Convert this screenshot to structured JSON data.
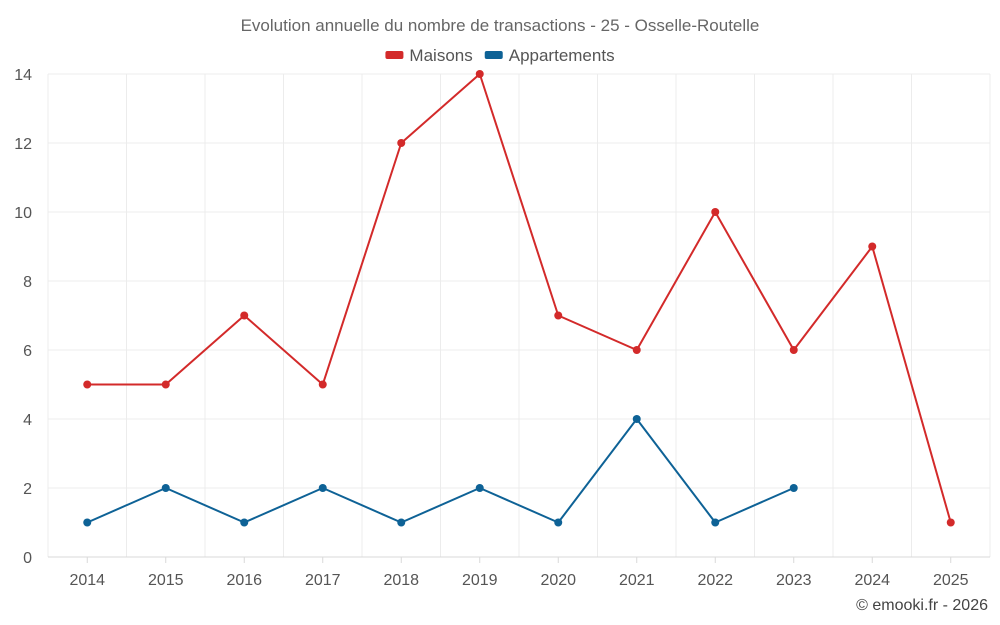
{
  "chart_data": {
    "type": "line",
    "title": "Evolution annuelle du nombre de transactions - 25 - Osselle-Routelle",
    "categories": [
      "2014",
      "2015",
      "2016",
      "2017",
      "2018",
      "2019",
      "2020",
      "2021",
      "2022",
      "2023",
      "2024",
      "2025"
    ],
    "series": [
      {
        "name": "Maisons",
        "color": "#d32a2a",
        "values": [
          5,
          5,
          7,
          5,
          12,
          14,
          7,
          6,
          10,
          6,
          9,
          1
        ]
      },
      {
        "name": "Appartements",
        "color": "#0e6296",
        "values": [
          1,
          2,
          1,
          2,
          1,
          2,
          1,
          4,
          1,
          2,
          null,
          null
        ]
      }
    ],
    "ylim": [
      0,
      14
    ],
    "yticks": [
      0,
      2,
      4,
      6,
      8,
      10,
      12,
      14
    ],
    "grid": true,
    "legend": "top-center",
    "xlabel": "",
    "ylabel": ""
  },
  "credit": "© emooki.fr - 2026"
}
